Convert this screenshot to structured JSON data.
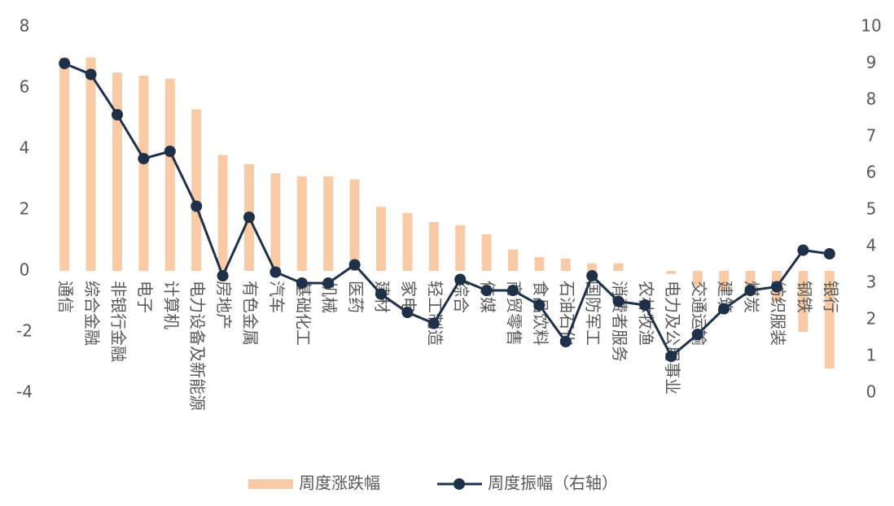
{
  "chart_data": {
    "type": "bar-line",
    "categories": [
      "通信",
      "综合金融",
      "非银行金融",
      "电子",
      "计算机",
      "电力设备及新能源",
      "房地产",
      "有色金属",
      "汽车",
      "基础化工",
      "机械",
      "医药",
      "建材",
      "家电",
      "轻工制造",
      "综合",
      "传媒",
      "商贸零售",
      "食品饮料",
      "石油石化",
      "国防军工",
      "消费者服务",
      "农林牧渔",
      "电力及公用事业",
      "交通运输",
      "建筑",
      "煤炭",
      "纺织服装",
      "钢铁",
      "银行"
    ],
    "series": [
      {
        "name": "周度涨跌幅",
        "type": "bar",
        "color": "#f8cba6",
        "values": [
          7.0,
          7.0,
          6.5,
          6.4,
          6.3,
          5.3,
          3.8,
          3.5,
          3.2,
          3.1,
          3.1,
          3.0,
          2.1,
          1.9,
          1.6,
          1.5,
          1.2,
          0.7,
          0.45,
          0.4,
          0.25,
          0.25,
          0,
          -0.1,
          -0.5,
          -0.6,
          -0.7,
          -1.0,
          -2.0,
          -3.2
        ]
      },
      {
        "name": "周度振幅（右轴）",
        "type": "line",
        "axis": "y2",
        "color": "#1f3049",
        "values": [
          9.0,
          8.7,
          7.6,
          6.4,
          6.6,
          5.1,
          3.2,
          4.8,
          3.3,
          3.0,
          3.0,
          3.5,
          2.7,
          2.2,
          1.9,
          3.1,
          2.8,
          2.8,
          2.4,
          1.4,
          3.2,
          2.5,
          2.4,
          1.0,
          1.6,
          2.3,
          2.8,
          2.9,
          3.9,
          3.8
        ]
      }
    ],
    "ylim": [
      -4,
      8
    ],
    "yticks": [
      -4,
      -2,
      0,
      2,
      4,
      6,
      8
    ],
    "y2lim": [
      0,
      10
    ],
    "y2ticks": [
      0,
      1,
      2,
      3,
      4,
      5,
      6,
      7,
      8,
      9,
      10
    ],
    "legend": "bottom"
  }
}
